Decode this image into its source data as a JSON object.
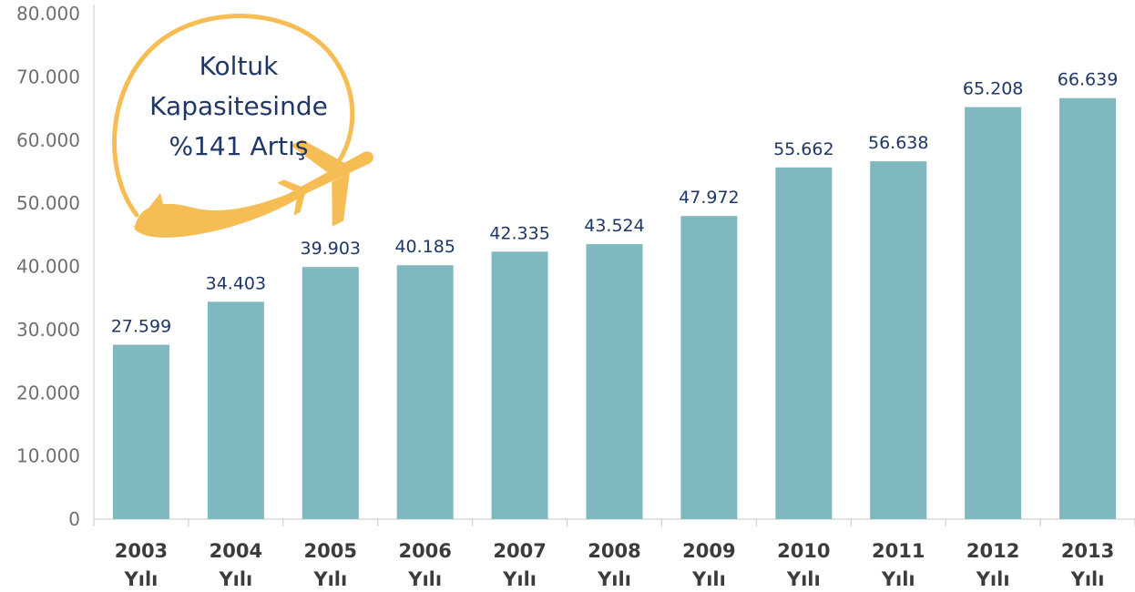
{
  "chart_data": {
    "type": "bar",
    "categories": [
      "2003 Yılı",
      "2004 Yılı",
      "2005 Yılı",
      "2006 Yılı",
      "2007 Yılı",
      "2008 Yılı",
      "2009 Yılı",
      "2010 Yılı",
      "2011 Yılı",
      "2012 Yılı",
      "2013 Yılı"
    ],
    "category_lines": [
      [
        "2003",
        "Yılı"
      ],
      [
        "2004",
        "Yılı"
      ],
      [
        "2005",
        "Yılı"
      ],
      [
        "2006",
        "Yılı"
      ],
      [
        "2007",
        "Yılı"
      ],
      [
        "2008",
        "Yılı"
      ],
      [
        "2009",
        "Yılı"
      ],
      [
        "2010",
        "Yılı"
      ],
      [
        "2011",
        "Yılı"
      ],
      [
        "2012",
        "Yılı"
      ],
      [
        "2013",
        "Yılı"
      ]
    ],
    "values": [
      27599,
      34403,
      39903,
      40185,
      42335,
      43524,
      47972,
      55662,
      56638,
      65208,
      66639
    ],
    "value_labels": [
      "27.599",
      "34.403",
      "39.903",
      "40.185",
      "42.335",
      "43.524",
      "47.972",
      "55.662",
      "56.638",
      "65.208",
      "66.639"
    ],
    "ylim": [
      0,
      80000
    ],
    "yticks": [
      0,
      10000,
      20000,
      30000,
      40000,
      50000,
      60000,
      70000,
      80000
    ],
    "ytick_labels": [
      "0",
      "10.000",
      "20.000",
      "30.000",
      "40.000",
      "50.000",
      "60.000",
      "70.000",
      "80.000"
    ],
    "title": "",
    "xlabel": "",
    "ylabel": "",
    "grid": false,
    "legend": "none",
    "annotation": {
      "lines": [
        "Koltuk",
        "Kapasitesinde",
        "%141 Artış"
      ]
    },
    "colors": {
      "bar": "#7fb9bf",
      "value_label": "#1f3766",
      "tick_label": "#6f6f6f",
      "category_label": "#3c3c3c",
      "axis": "#c8c8c8",
      "annotation_ring": "#f7bd55",
      "annotation_text": "#1f3766"
    }
  }
}
